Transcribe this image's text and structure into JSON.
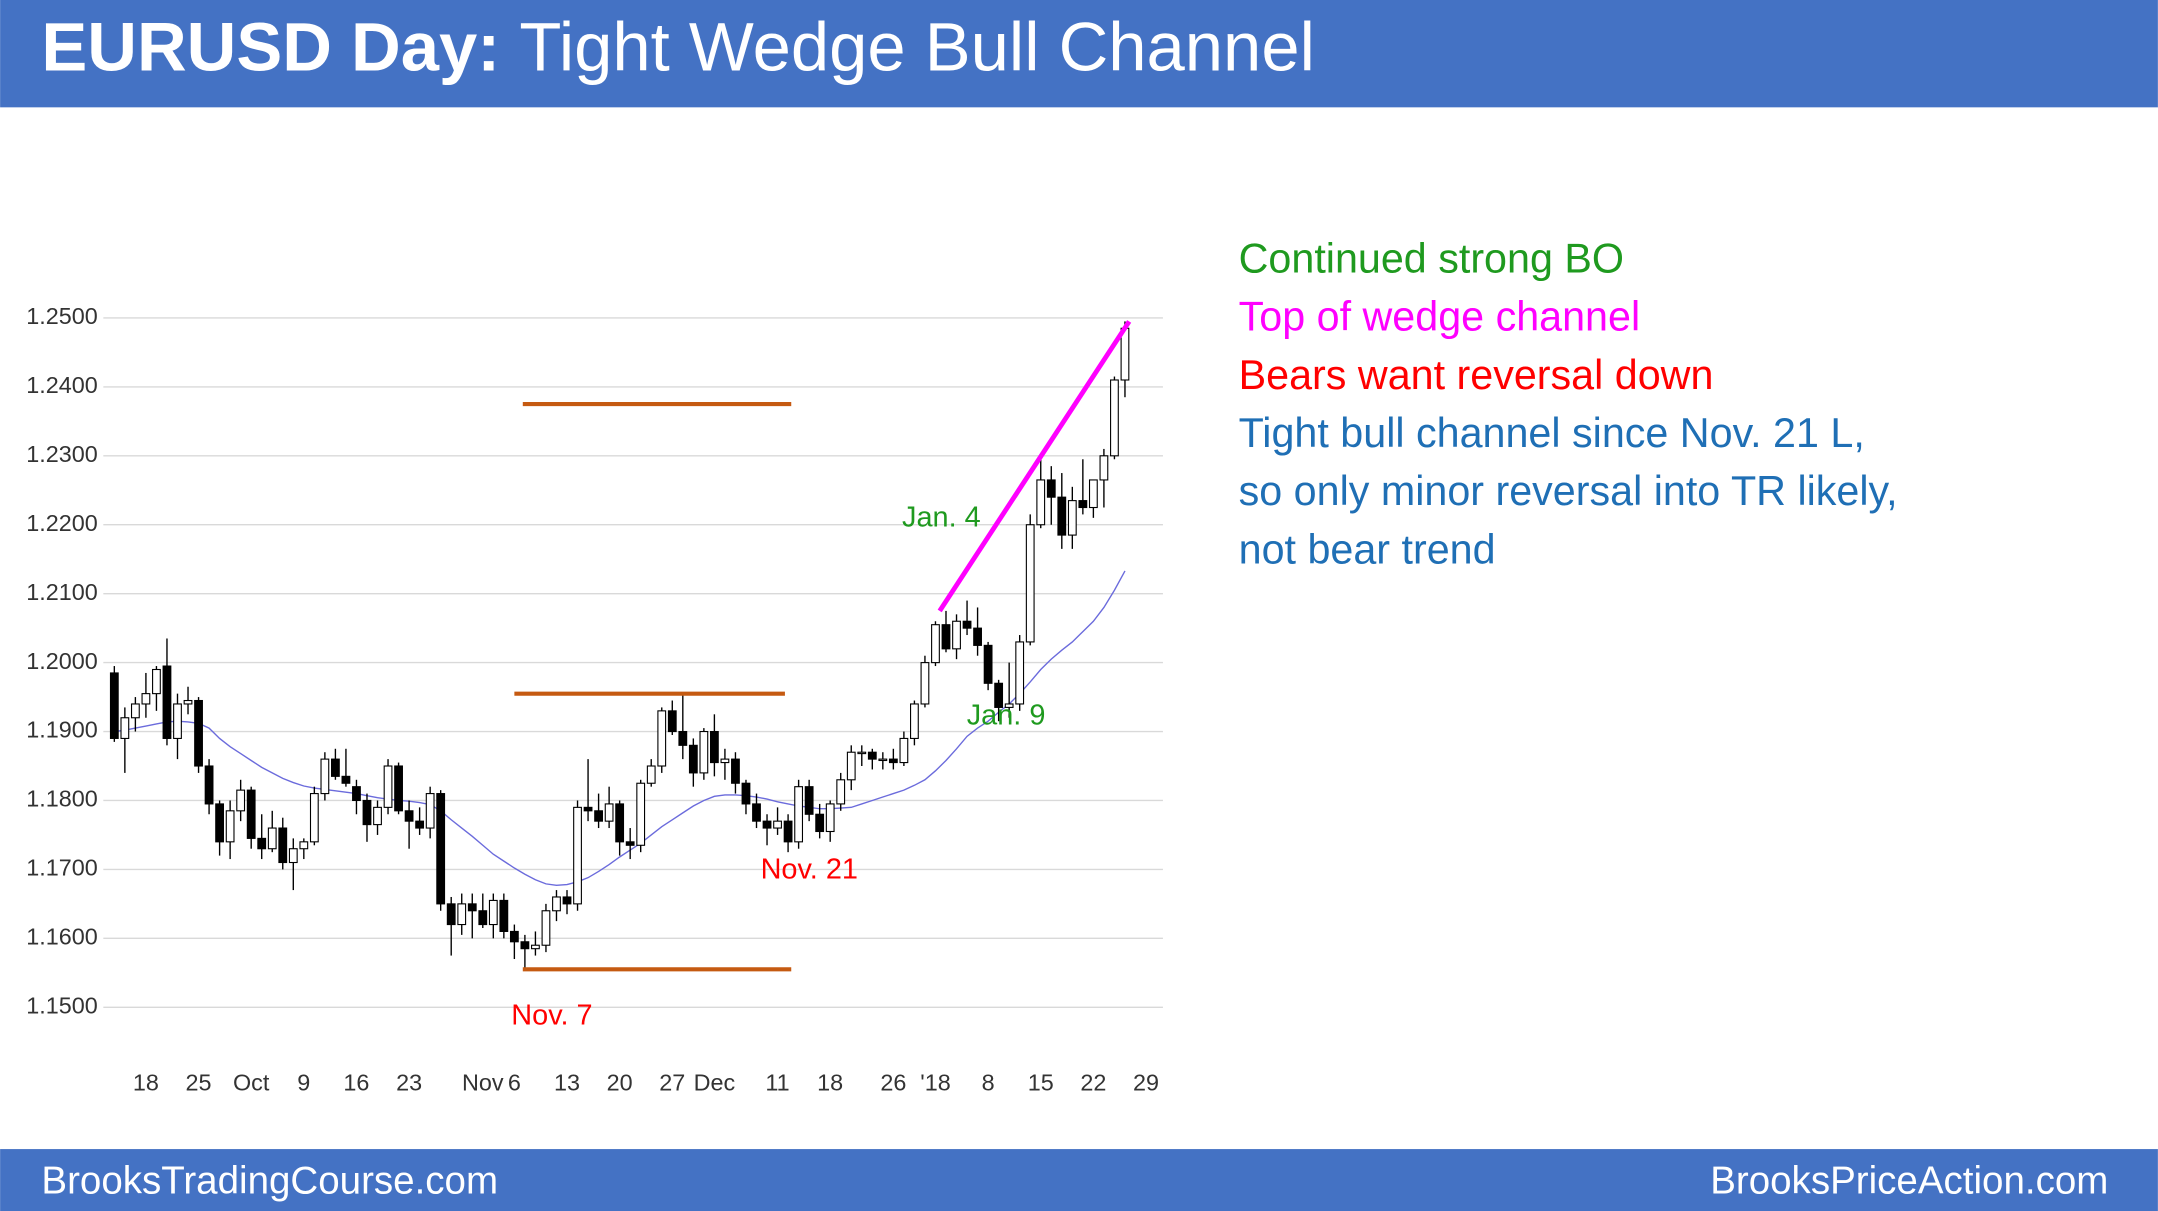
{
  "header": {
    "title_bold": "EURUSD Day:",
    "title": "Tight Wedge Bull Channel"
  },
  "footer": {
    "left": "BrooksTradingCourse.com",
    "right": "BrooksPriceAction.com"
  },
  "chart_data": {
    "type": "candlestick",
    "categories": [
      null,
      null,
      null,
      "18",
      null,
      null,
      null,
      null,
      "25",
      null,
      null,
      null,
      null,
      "Oct",
      null,
      null,
      null,
      null,
      "9",
      null,
      null,
      null,
      null,
      "16",
      null,
      null,
      null,
      null,
      "23",
      null,
      null,
      null,
      null,
      null,
      null,
      "Nov",
      null,
      null,
      "6",
      null,
      null,
      null,
      null,
      "13",
      null,
      null,
      null,
      null,
      "20",
      null,
      null,
      null,
      null,
      "27",
      null,
      null,
      null,
      "Dec",
      null,
      null,
      null,
      null,
      null,
      "11",
      null,
      null,
      null,
      null,
      "18",
      null,
      null,
      null,
      null,
      null,
      "26",
      null,
      null,
      null,
      "'18",
      null,
      null,
      null,
      null,
      "8",
      null,
      null,
      null,
      null,
      "15",
      null,
      null,
      null,
      null,
      "22",
      null,
      null,
      null,
      null,
      "29"
    ],
    "open": [
      1.1985,
      1.189,
      1.192,
      1.194,
      1.1955,
      1.1995,
      1.189,
      1.194,
      1.1945,
      1.185,
      1.1795,
      1.174,
      1.1785,
      1.1815,
      1.1745,
      1.173,
      1.176,
      1.171,
      1.173,
      1.174,
      1.181,
      1.186,
      1.1835,
      1.182,
      1.18,
      1.1765,
      1.179,
      1.185,
      1.1785,
      1.177,
      1.176,
      1.181,
      1.165,
      1.162,
      1.165,
      1.164,
      1.162,
      1.1655,
      1.161,
      1.1595,
      1.1585,
      1.159,
      1.164,
      1.166,
      1.165,
      1.179,
      1.1785,
      1.177,
      1.1795,
      1.174,
      1.1735,
      1.1825,
      1.185,
      1.193,
      1.19,
      1.188,
      1.184,
      1.19,
      1.1855,
      1.186,
      1.1825,
      1.1795,
      1.177,
      1.176,
      1.177,
      1.174,
      1.182,
      1.178,
      1.1755,
      1.1795,
      1.183,
      1.187,
      1.187,
      1.186,
      1.186,
      1.1855,
      1.189,
      1.194,
      1.2,
      1.2055,
      1.202,
      1.206,
      1.205,
      1.2025,
      1.197,
      1.1935,
      1.194,
      1.203,
      1.22,
      1.2265,
      1.224,
      1.2185,
      1.2235,
      1.2225,
      1.2265,
      1.23,
      1.241,
      null,
      null
    ],
    "high": [
      1.1995,
      1.1935,
      1.195,
      1.1985,
      1.1995,
      1.2035,
      1.1955,
      1.1965,
      1.195,
      1.186,
      1.18,
      1.18,
      1.183,
      1.182,
      1.178,
      1.1785,
      1.1775,
      1.1745,
      1.1745,
      1.182,
      1.187,
      1.1875,
      1.1875,
      1.183,
      1.181,
      1.18,
      1.186,
      1.1855,
      1.18,
      1.179,
      1.182,
      1.1815,
      1.166,
      1.1665,
      1.1665,
      1.1665,
      1.1665,
      1.1665,
      1.162,
      1.1605,
      1.161,
      1.165,
      1.167,
      1.167,
      1.18,
      1.186,
      1.181,
      1.182,
      1.18,
      1.176,
      1.183,
      1.186,
      1.1935,
      1.1945,
      1.1955,
      1.189,
      1.1905,
      1.1925,
      1.1875,
      1.187,
      1.183,
      1.181,
      1.178,
      1.179,
      1.178,
      1.183,
      1.183,
      1.1795,
      1.18,
      1.184,
      1.188,
      1.188,
      1.1875,
      1.187,
      1.1875,
      1.19,
      1.1945,
      1.201,
      1.206,
      1.2075,
      1.207,
      1.209,
      1.208,
      1.203,
      1.1975,
      1.2,
      1.204,
      1.2215,
      1.2295,
      1.2285,
      1.2275,
      1.2255,
      1.2295,
      1.226,
      1.231,
      1.2415,
      1.2495,
      null,
      null
    ],
    "low": [
      1.1885,
      1.184,
      1.19,
      1.192,
      1.193,
      1.188,
      1.186,
      1.1925,
      1.184,
      1.178,
      1.172,
      1.1715,
      1.177,
      1.173,
      1.1715,
      1.1725,
      1.17,
      1.167,
      1.1715,
      1.1735,
      1.18,
      1.183,
      1.182,
      1.178,
      1.174,
      1.175,
      1.178,
      1.178,
      1.173,
      1.175,
      1.1745,
      1.164,
      1.1575,
      1.1605,
      1.16,
      1.1615,
      1.16,
      1.16,
      1.157,
      1.1555,
      1.1575,
      1.158,
      1.1625,
      1.1635,
      1.164,
      1.177,
      1.176,
      1.176,
      1.172,
      1.1715,
      1.1725,
      1.182,
      1.184,
      1.1895,
      1.186,
      1.182,
      1.183,
      1.1835,
      1.183,
      1.181,
      1.178,
      1.176,
      1.1735,
      1.175,
      1.1725,
      1.173,
      1.177,
      1.1745,
      1.174,
      1.1785,
      1.1815,
      1.185,
      1.1845,
      1.1845,
      1.1845,
      1.185,
      1.188,
      1.1935,
      1.1995,
      1.2015,
      1.2005,
      1.204,
      1.201,
      1.196,
      1.1915,
      1.192,
      1.193,
      1.2025,
      1.2195,
      1.22,
      1.2165,
      1.2165,
      1.2215,
      1.221,
      1.2225,
      1.2295,
      1.2385,
      null,
      null
    ],
    "close": [
      1.189,
      1.192,
      1.194,
      1.1955,
      1.199,
      1.189,
      1.194,
      1.1945,
      1.185,
      1.1795,
      1.174,
      1.1785,
      1.1815,
      1.1745,
      1.173,
      1.176,
      1.171,
      1.173,
      1.174,
      1.181,
      1.186,
      1.1835,
      1.1825,
      1.18,
      1.1765,
      1.179,
      1.185,
      1.1785,
      1.177,
      1.176,
      1.181,
      1.165,
      1.162,
      1.165,
      1.164,
      1.162,
      1.1655,
      1.161,
      1.1595,
      1.1585,
      1.159,
      1.164,
      1.166,
      1.165,
      1.179,
      1.1785,
      1.177,
      1.1795,
      1.174,
      1.1735,
      1.1825,
      1.185,
      1.193,
      1.19,
      1.188,
      1.184,
      1.19,
      1.1855,
      1.186,
      1.1825,
      1.1795,
      1.177,
      1.176,
      1.177,
      1.174,
      1.182,
      1.178,
      1.1755,
      1.1795,
      1.183,
      1.187,
      1.187,
      1.186,
      1.186,
      1.1855,
      1.189,
      1.194,
      1.2,
      1.2055,
      1.202,
      1.206,
      1.205,
      1.2025,
      1.197,
      1.1935,
      1.194,
      1.203,
      1.22,
      1.2265,
      1.224,
      1.2185,
      1.2235,
      1.2225,
      1.2265,
      1.23,
      1.241,
      1.2485,
      null,
      null
    ],
    "up_color": "#ffffff",
    "down_color": "#000000",
    "ma": {
      "color": "#6b6bdc",
      "values": [
        1.19,
        1.1902,
        1.1905,
        1.1908,
        1.1911,
        1.1914,
        1.1915,
        1.1914,
        1.1912,
        1.1905,
        1.189,
        1.1878,
        1.1868,
        1.1858,
        1.1848,
        1.184,
        1.1832,
        1.1826,
        1.1821,
        1.1818,
        1.1816,
        1.1814,
        1.1812,
        1.181,
        1.1807,
        1.1804,
        1.1802,
        1.18,
        1.1799,
        1.1797,
        1.1794,
        1.1785,
        1.1772,
        1.176,
        1.1748,
        1.1735,
        1.1722,
        1.1712,
        1.1702,
        1.1693,
        1.1685,
        1.1679,
        1.1677,
        1.1678,
        1.1682,
        1.1688,
        1.1697,
        1.1707,
        1.1718,
        1.1728,
        1.1738,
        1.175,
        1.1762,
        1.1772,
        1.1782,
        1.1792,
        1.18,
        1.1806,
        1.1808,
        1.1808,
        1.1807,
        1.1805,
        1.1802,
        1.1798,
        1.1795,
        1.1792,
        1.179,
        1.1788,
        1.1788,
        1.1789,
        1.179,
        1.1795,
        1.18,
        1.1805,
        1.181,
        1.1815,
        1.1822,
        1.183,
        1.1843,
        1.1858,
        1.1875,
        1.1893,
        1.1905,
        1.1915,
        1.1928,
        1.194,
        1.1955,
        1.1972,
        1.199,
        1.2005,
        1.2018,
        1.203,
        1.2045,
        1.206,
        1.208,
        1.2105,
        1.2133,
        null,
        null
      ]
    },
    "ylim": [
      1.145,
      1.255
    ],
    "yticks": [
      {
        "value": 1.15,
        "label": "1.1500"
      },
      {
        "value": 1.16,
        "label": "1.1600"
      },
      {
        "value": 1.17,
        "label": "1.1700"
      },
      {
        "value": 1.18,
        "label": "1.1800"
      },
      {
        "value": 1.19,
        "label": "1.1900"
      },
      {
        "value": 1.2,
        "label": "1.2000"
      },
      {
        "value": 1.21,
        "label": "1.2100"
      },
      {
        "value": 1.22,
        "label": "1.2200"
      },
      {
        "value": 1.23,
        "label": "1.2300"
      },
      {
        "value": 1.24,
        "label": "1.2400"
      },
      {
        "value": 1.25,
        "label": "1.2500"
      }
    ],
    "grid": true,
    "lines": [
      {
        "color": "#c55a11",
        "x": [
          38.8,
          64.3
        ],
        "y": [
          1.2375,
          1.2375
        ]
      },
      {
        "color": "#c55a11",
        "x": [
          38.0,
          63.7
        ],
        "y": [
          1.1955,
          1.1955
        ]
      },
      {
        "color": "#c55a11",
        "x": [
          38.8,
          64.3
        ],
        "y": [
          1.1555,
          1.1555
        ]
      },
      {
        "color": "#ff00ff",
        "x": [
          78.4,
          96.4
        ],
        "y": [
          1.2075,
          1.2495
        ]
      }
    ],
    "annotations": [
      {
        "text": "Jan. 4",
        "color": "#1f9a1f"
      },
      {
        "text": "Jan. 9",
        "color": "#1f9a1f"
      },
      {
        "text": "Nov. 21",
        "color": "#ff0000"
      },
      {
        "text": "Nov. 7",
        "color": "#ff0000"
      }
    ],
    "notes": [
      {
        "text": "Continued strong BO",
        "color": "#1f9a1f"
      },
      {
        "text": "Top of wedge channel",
        "color": "#ff00ff"
      },
      {
        "text": "Bears want reversal down",
        "color": "#ff0000"
      },
      {
        "text": "Tight bull channel since Nov. 21 L,",
        "color": "#1f6fb5"
      },
      {
        "text": "so only minor reversal into TR likely,",
        "color": "#1f6fb5"
      },
      {
        "text": "not bear trend",
        "color": "#1f6fb5"
      }
    ]
  }
}
